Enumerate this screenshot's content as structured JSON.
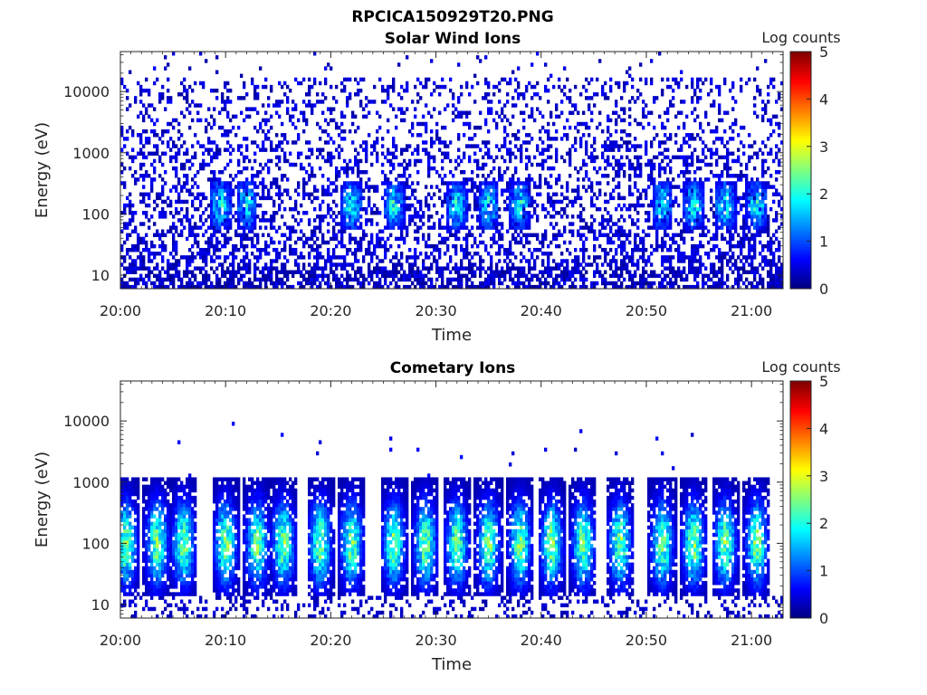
{
  "figure": {
    "title": "RPCICA150929T20.PNG"
  },
  "colormap": {
    "name": "jet",
    "stops": [
      "#00007f",
      "#0000ff",
      "#007fff",
      "#00ffff",
      "#7fff7f",
      "#ffff00",
      "#ff7f00",
      "#ff0000",
      "#7f0000"
    ]
  },
  "chart_data": [
    {
      "type": "heatmap",
      "title": "Solar Wind Ions",
      "xlabel": "Time",
      "ylabel": "Energy (eV)",
      "x_range": [
        "20:00",
        "21:03"
      ],
      "x_ticks": [
        "20:00",
        "20:10",
        "20:20",
        "20:30",
        "20:40",
        "20:50",
        "21:00"
      ],
      "y_scale": "log",
      "ylim": [
        6,
        45000
      ],
      "y_ticks": [
        "10",
        "100",
        "1000",
        "10000"
      ],
      "colorbar": {
        "label": "Log counts",
        "range": [
          0,
          5
        ],
        "ticks": [
          "0",
          "1",
          "2",
          "3",
          "4",
          "5"
        ]
      },
      "description_values": {
        "background_log_counts": [
          0,
          1
        ],
        "burst_times_min": [
          9.5,
          12,
          22,
          26,
          32,
          35,
          38,
          51.5,
          54.5,
          57.5,
          60.5
        ],
        "burst_energy_range_eV": [
          50,
          400
        ],
        "burst_peak_log_counts": 2
      }
    },
    {
      "type": "heatmap",
      "title": "Cometary Ions",
      "xlabel": "Time",
      "ylabel": "Energy (eV)",
      "x_range": [
        "20:00",
        "21:03"
      ],
      "x_ticks": [
        "20:00",
        "20:10",
        "20:20",
        "20:30",
        "20:40",
        "20:50",
        "21:00"
      ],
      "y_scale": "log",
      "ylim": [
        6,
        45000
      ],
      "y_ticks": [
        "10",
        "100",
        "1000",
        "10000"
      ],
      "colorbar": {
        "label": "Log counts",
        "range": [
          0,
          5
        ],
        "ticks": [
          "0",
          "1",
          "2",
          "3",
          "4",
          "5"
        ]
      },
      "description_values": {
        "burst_times_min": [
          0.5,
          3.5,
          6,
          10,
          13,
          15.5,
          19,
          22,
          26,
          29,
          32,
          35,
          38,
          41,
          44,
          47.5,
          51.5,
          54.5,
          57.5,
          60.5
        ],
        "burst_energy_range_eV": [
          20,
          800
        ],
        "burst_peak_energy_eV": 100,
        "burst_peak_log_counts": 2.7
      }
    }
  ]
}
